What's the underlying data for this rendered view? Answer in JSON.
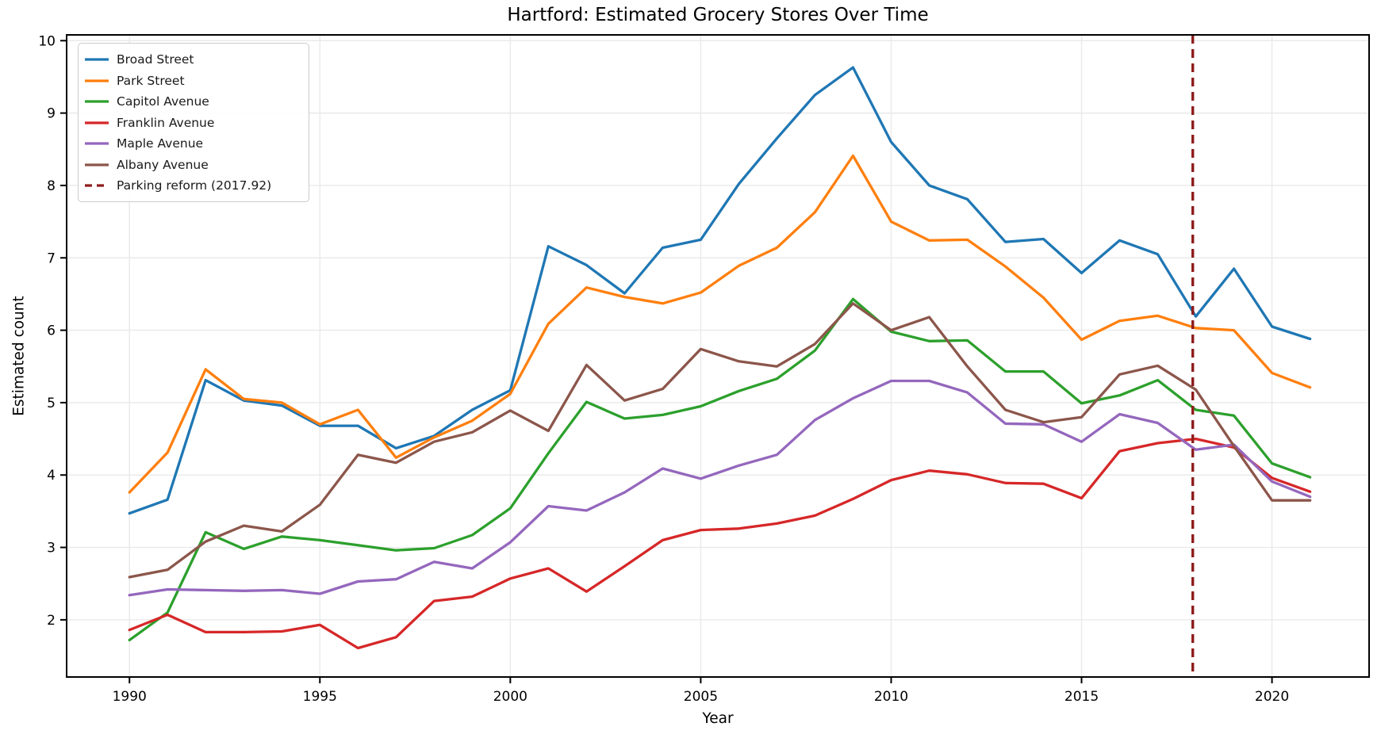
{
  "figure": {
    "background": "#ffffff",
    "text_color": "#000000",
    "grid_color": "#e9e9e9",
    "spine_color": "#000000"
  },
  "chart_data": {
    "type": "line",
    "title": "Hartford: Estimated Grocery Stores Over Time",
    "xlabel": "Year",
    "ylabel": "Estimated count",
    "xlim": [
      1988.35,
      2022.55
    ],
    "ylim": [
      1.21,
      10.08
    ],
    "xticks": [
      1990,
      1995,
      2000,
      2005,
      2010,
      2015,
      2020
    ],
    "yticks": [
      2,
      3,
      4,
      5,
      6,
      7,
      8,
      9,
      10
    ],
    "grid": true,
    "legend_position": "upper left",
    "x": [
      1990,
      1991,
      1992,
      1993,
      1994,
      1995,
      1996,
      1997,
      1998,
      1999,
      2000,
      2001,
      2002,
      2003,
      2004,
      2005,
      2006,
      2007,
      2008,
      2009,
      2010,
      2011,
      2012,
      2013,
      2014,
      2015,
      2016,
      2017,
      2018,
      2019,
      2020,
      2021
    ],
    "series": [
      {
        "name": "Broad Street",
        "color": "#1f77b4",
        "values": [
          3.47,
          3.66,
          5.31,
          5.03,
          4.96,
          4.68,
          4.68,
          4.37,
          4.54,
          4.9,
          5.17,
          7.16,
          6.9,
          6.51,
          7.14,
          7.25,
          8.02,
          8.65,
          9.25,
          9.63,
          8.6,
          8.0,
          7.81,
          7.22,
          7.26,
          6.79,
          7.24,
          7.05,
          6.19,
          6.85,
          6.05,
          5.88
        ]
      },
      {
        "name": "Park Street",
        "color": "#ff7f0e",
        "values": [
          3.76,
          4.31,
          5.46,
          5.05,
          5.0,
          4.7,
          4.9,
          4.24,
          4.52,
          4.75,
          5.12,
          6.09,
          6.59,
          6.46,
          6.37,
          6.52,
          6.89,
          7.14,
          7.63,
          8.41,
          7.5,
          7.24,
          7.25,
          6.88,
          6.45,
          5.87,
          6.13,
          6.2,
          6.03,
          6.0,
          5.41,
          5.21
        ]
      },
      {
        "name": "Capitol Avenue",
        "color": "#2ca02c",
        "values": [
          1.72,
          2.1,
          3.21,
          2.98,
          3.15,
          3.1,
          3.03,
          2.96,
          2.99,
          3.17,
          3.54,
          4.3,
          5.01,
          4.78,
          4.83,
          4.95,
          5.16,
          5.33,
          5.72,
          6.43,
          5.98,
          5.85,
          5.86,
          5.43,
          5.43,
          4.99,
          5.1,
          5.31,
          4.9,
          4.82,
          4.16,
          3.97
        ]
      },
      {
        "name": "Franklin Avenue",
        "color": "#d62728",
        "values": [
          1.86,
          2.07,
          1.83,
          1.83,
          1.84,
          1.93,
          1.61,
          1.76,
          2.26,
          2.32,
          2.57,
          2.71,
          2.39,
          2.74,
          3.1,
          3.24,
          3.26,
          3.33,
          3.44,
          3.67,
          3.93,
          4.06,
          4.01,
          3.89,
          3.88,
          3.68,
          4.33,
          4.44,
          4.5,
          4.38,
          3.96,
          3.77
        ]
      },
      {
        "name": "Maple Avenue",
        "color": "#9467bd",
        "values": [
          2.34,
          2.42,
          2.41,
          2.4,
          2.41,
          2.36,
          2.53,
          2.56,
          2.8,
          2.71,
          3.07,
          3.57,
          3.51,
          3.76,
          4.09,
          3.95,
          4.13,
          4.28,
          4.76,
          5.06,
          5.3,
          5.3,
          5.14,
          4.71,
          4.7,
          4.46,
          4.84,
          4.72,
          4.35,
          4.42,
          3.91,
          3.7
        ]
      },
      {
        "name": "Albany Avenue",
        "color": "#8c564b",
        "values": [
          2.59,
          2.69,
          3.08,
          3.3,
          3.22,
          3.59,
          4.28,
          4.17,
          4.46,
          4.59,
          4.89,
          4.61,
          5.52,
          5.03,
          5.19,
          5.74,
          5.57,
          5.5,
          5.81,
          6.37,
          6.0,
          6.18,
          5.5,
          4.9,
          4.73,
          4.8,
          5.39,
          5.51,
          5.18,
          4.4,
          3.65,
          3.65
        ]
      }
    ],
    "vline": {
      "label": "Parking reform (2017.92)",
      "x": 2017.92,
      "color": "#8f1d1d",
      "style": "dashed"
    }
  }
}
